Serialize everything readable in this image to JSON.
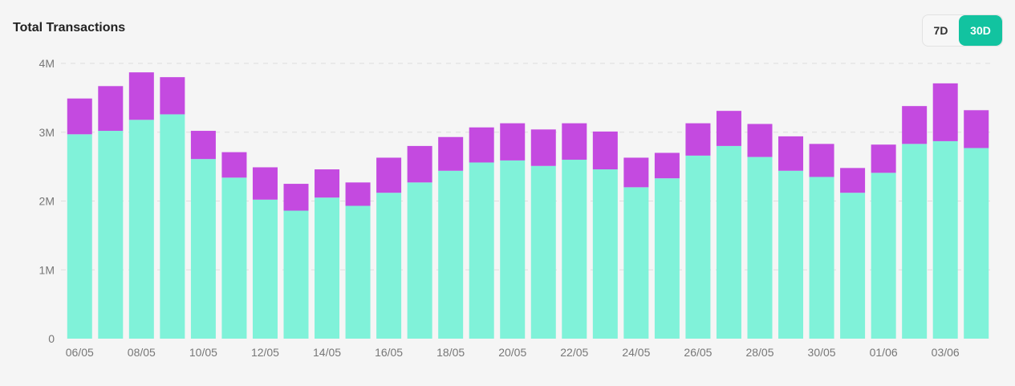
{
  "header": {
    "title": "Total Transactions"
  },
  "range_toggle": {
    "options": [
      "7D",
      "30D"
    ],
    "selected": "30D"
  },
  "colors": {
    "base": "#80f2d9",
    "top": "#c44ae0",
    "accent": "#12c3a0",
    "grid": "#dddddd"
  },
  "chart_data": {
    "type": "bar",
    "stacked": true,
    "title": "Total Transactions",
    "xlabel": "",
    "ylabel": "",
    "ylim": [
      0,
      4000000
    ],
    "yticks": [
      0,
      1000000,
      2000000,
      3000000,
      4000000
    ],
    "ytick_labels": [
      "0",
      "1M",
      "2M",
      "3M",
      "4M"
    ],
    "grid": true,
    "categories": [
      "06/05",
      "07/05",
      "08/05",
      "09/05",
      "10/05",
      "11/05",
      "12/05",
      "13/05",
      "14/05",
      "15/05",
      "16/05",
      "17/05",
      "18/05",
      "19/05",
      "20/05",
      "21/05",
      "22/05",
      "23/05",
      "24/05",
      "25/05",
      "26/05",
      "27/05",
      "28/05",
      "29/05",
      "30/05",
      "31/05",
      "01/06",
      "02/06",
      "03/06",
      "04/06"
    ],
    "xtick_labels": [
      "06/05",
      "08/05",
      "10/05",
      "12/05",
      "14/05",
      "16/05",
      "18/05",
      "20/05",
      "22/05",
      "24/05",
      "26/05",
      "28/05",
      "30/05",
      "01/06",
      "03/06"
    ],
    "series": [
      {
        "values": [
          2970000,
          3020000,
          3180000,
          3260000,
          2610000,
          2340000,
          2020000,
          1860000,
          2050000,
          1930000,
          2120000,
          2270000,
          2440000,
          2560000,
          2590000,
          2510000,
          2600000,
          2460000,
          2200000,
          2330000,
          2660000,
          2800000,
          2640000,
          2440000,
          2350000,
          2120000,
          2410000,
          2830000,
          2870000,
          2770000
        ]
      },
      {
        "values": [
          520000,
          650000,
          690000,
          540000,
          410000,
          370000,
          470000,
          390000,
          410000,
          340000,
          510000,
          530000,
          490000,
          510000,
          540000,
          530000,
          530000,
          550000,
          430000,
          370000,
          470000,
          510000,
          480000,
          500000,
          480000,
          360000,
          410000,
          550000,
          840000,
          550000
        ]
      }
    ]
  }
}
